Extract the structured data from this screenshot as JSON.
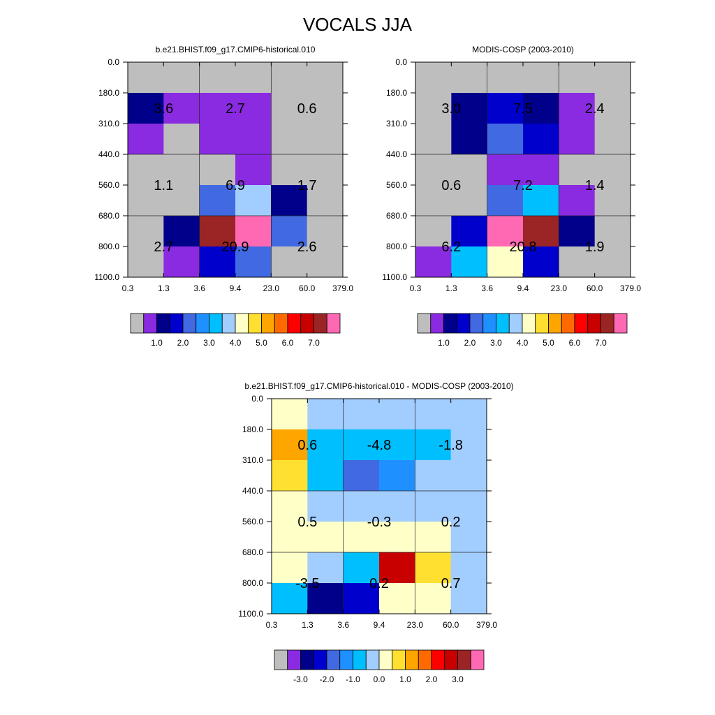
{
  "title": "VOCALS JJA",
  "chart_data": [
    {
      "type": "heatmap",
      "title": "b.e21.BHIST.f09_g17.CMIP6-historical.010",
      "x_ticks": [
        "0.3",
        "1.3",
        "3.6",
        "9.4",
        "23.0",
        "60.0",
        "379.0"
      ],
      "y_ticks": [
        "0.0",
        "180.0",
        "310.0",
        "440.0",
        "560.0",
        "680.0",
        "800.0",
        "1100.0"
      ],
      "cell_colors": [
        [
          "#bebebe",
          "#bebebe",
          "#bebebe",
          "#bebebe",
          "#bebebe",
          "#bebebe"
        ],
        [
          "#00008b",
          "#8a2be2",
          "#8a2be2",
          "#8a2be2",
          "#bebebe",
          "#bebebe"
        ],
        [
          "#8a2be2",
          "#bebebe",
          "#8a2be2",
          "#8a2be2",
          "#bebebe",
          "#bebebe"
        ],
        [
          "#bebebe",
          "#bebebe",
          "#bebebe",
          "#8a2be2",
          "#bebebe",
          "#bebebe"
        ],
        [
          "#bebebe",
          "#bebebe",
          "#4169e1",
          "#a2cdff",
          "#00008b",
          "#bebebe"
        ],
        [
          "#bebebe",
          "#00008b",
          "#9b2424",
          "#ff69b4",
          "#4169e1",
          "#bebebe"
        ],
        [
          "#bebebe",
          "#8a2be2",
          "#0000cd",
          "#4169e1",
          "#bebebe",
          "#bebebe"
        ]
      ],
      "annotations": [
        {
          "row": 0,
          "col": 0,
          "text": "3.6"
        },
        {
          "row": 0,
          "col": 1,
          "text": "2.7"
        },
        {
          "row": 0,
          "col": 2,
          "text": "0.6"
        },
        {
          "row": 1,
          "col": 0,
          "text": "1.1"
        },
        {
          "row": 1,
          "col": 1,
          "text": "6.9"
        },
        {
          "row": 1,
          "col": 2,
          "text": "1.7"
        },
        {
          "row": 2,
          "col": 0,
          "text": "2.7"
        },
        {
          "row": 2,
          "col": 1,
          "text": "20.9"
        },
        {
          "row": 2,
          "col": 2,
          "text": "2.6"
        }
      ],
      "colorbar": {
        "colors": [
          "#bebebe",
          "#8a2be2",
          "#00008b",
          "#0000cd",
          "#4169e1",
          "#1e90ff",
          "#00bfff",
          "#a2cdff",
          "#ffffc8",
          "#ffe030",
          "#ffa500",
          "#ff6a00",
          "#ff0000",
          "#c80000",
          "#9b2424",
          "#ff69b4"
        ],
        "labels": [
          "1.0",
          "2.0",
          "3.0",
          "4.0",
          "5.0",
          "6.0",
          "7.0"
        ]
      }
    },
    {
      "type": "heatmap",
      "title": "MODIS-COSP (2003-2010)",
      "x_ticks": [
        "0.3",
        "1.3",
        "3.6",
        "9.4",
        "23.0",
        "60.0",
        "379.0"
      ],
      "y_ticks": [
        "0.0",
        "180.0",
        "310.0",
        "440.0",
        "560.0",
        "680.0",
        "800.0",
        "1100.0"
      ],
      "cell_colors": [
        [
          "#bebebe",
          "#bebebe",
          "#bebebe",
          "#bebebe",
          "#bebebe",
          "#bebebe"
        ],
        [
          "#bebebe",
          "#00008b",
          "#0000cd",
          "#00008b",
          "#8a2be2",
          "#bebebe"
        ],
        [
          "#bebebe",
          "#00008b",
          "#4169e1",
          "#0000cd",
          "#8a2be2",
          "#bebebe"
        ],
        [
          "#bebebe",
          "#bebebe",
          "#8a2be2",
          "#8a2be2",
          "#bebebe",
          "#bebebe"
        ],
        [
          "#bebebe",
          "#bebebe",
          "#4169e1",
          "#00bfff",
          "#8a2be2",
          "#bebebe"
        ],
        [
          "#bebebe",
          "#0000cd",
          "#ff69b4",
          "#9b2424",
          "#00008b",
          "#bebebe"
        ],
        [
          "#8a2be2",
          "#00bfff",
          "#ffffc8",
          "#0000cd",
          "#bebebe",
          "#bebebe"
        ]
      ],
      "annotations": [
        {
          "row": 0,
          "col": 0,
          "text": "3.0"
        },
        {
          "row": 0,
          "col": 1,
          "text": "7.5"
        },
        {
          "row": 0,
          "col": 2,
          "text": "2.4"
        },
        {
          "row": 1,
          "col": 0,
          "text": "0.6"
        },
        {
          "row": 1,
          "col": 1,
          "text": "7.2"
        },
        {
          "row": 1,
          "col": 2,
          "text": "1.4"
        },
        {
          "row": 2,
          "col": 0,
          "text": "6.2"
        },
        {
          "row": 2,
          "col": 1,
          "text": "20.8"
        },
        {
          "row": 2,
          "col": 2,
          "text": "1.9"
        }
      ],
      "colorbar": {
        "colors": [
          "#bebebe",
          "#8a2be2",
          "#00008b",
          "#0000cd",
          "#4169e1",
          "#1e90ff",
          "#00bfff",
          "#a2cdff",
          "#ffffc8",
          "#ffe030",
          "#ffa500",
          "#ff6a00",
          "#ff0000",
          "#c80000",
          "#9b2424",
          "#ff69b4"
        ],
        "labels": [
          "1.0",
          "2.0",
          "3.0",
          "4.0",
          "5.0",
          "6.0",
          "7.0"
        ]
      }
    },
    {
      "type": "heatmap",
      "title": "b.e21.BHIST.f09_g17.CMIP6-historical.010 - MODIS-COSP (2003-2010)",
      "x_ticks": [
        "0.3",
        "1.3",
        "3.6",
        "9.4",
        "23.0",
        "60.0",
        "379.0"
      ],
      "y_ticks": [
        "0.0",
        "180.0",
        "310.0",
        "440.0",
        "560.0",
        "680.0",
        "800.0",
        "1100.0"
      ],
      "cell_colors": [
        [
          "#ffffc8",
          "#a2cdff",
          "#a2cdff",
          "#a2cdff",
          "#a2cdff",
          "#a2cdff"
        ],
        [
          "#ffa500",
          "#00bfff",
          "#00bfff",
          "#00bfff",
          "#00bfff",
          "#a2cdff"
        ],
        [
          "#ffe030",
          "#00bfff",
          "#4169e1",
          "#1e90ff",
          "#a2cdff",
          "#a2cdff"
        ],
        [
          "#ffffc8",
          "#a2cdff",
          "#a2cdff",
          "#a2cdff",
          "#a2cdff",
          "#a2cdff"
        ],
        [
          "#ffffc8",
          "#ffffc8",
          "#ffffc8",
          "#ffffc8",
          "#ffffc8",
          "#a2cdff"
        ],
        [
          "#ffffc8",
          "#a2cdff",
          "#00bfff",
          "#c80000",
          "#ffe030",
          "#a2cdff"
        ],
        [
          "#00bfff",
          "#00008b",
          "#0000cd",
          "#ffffc8",
          "#ffffc8",
          "#a2cdff"
        ]
      ],
      "annotations": [
        {
          "row": 0,
          "col": 0,
          "text": "0.6"
        },
        {
          "row": 0,
          "col": 1,
          "text": "-4.8"
        },
        {
          "row": 0,
          "col": 2,
          "text": "-1.8"
        },
        {
          "row": 1,
          "col": 0,
          "text": "0.5"
        },
        {
          "row": 1,
          "col": 1,
          "text": "-0.3"
        },
        {
          "row": 1,
          "col": 2,
          "text": "0.2"
        },
        {
          "row": 2,
          "col": 0,
          "text": "-3.5"
        },
        {
          "row": 2,
          "col": 1,
          "text": "0.2"
        },
        {
          "row": 2,
          "col": 2,
          "text": "0.7"
        }
      ],
      "colorbar": {
        "colors": [
          "#bebebe",
          "#8a2be2",
          "#00008b",
          "#0000cd",
          "#4169e1",
          "#1e90ff",
          "#00bfff",
          "#a2cdff",
          "#ffffc8",
          "#ffe030",
          "#ffa500",
          "#ff6a00",
          "#ff0000",
          "#c80000",
          "#9b2424",
          "#ff69b4"
        ],
        "labels": [
          "-3.0",
          "-2.0",
          "-1.0",
          "0.0",
          "1.0",
          "2.0",
          "3.0"
        ]
      }
    }
  ]
}
